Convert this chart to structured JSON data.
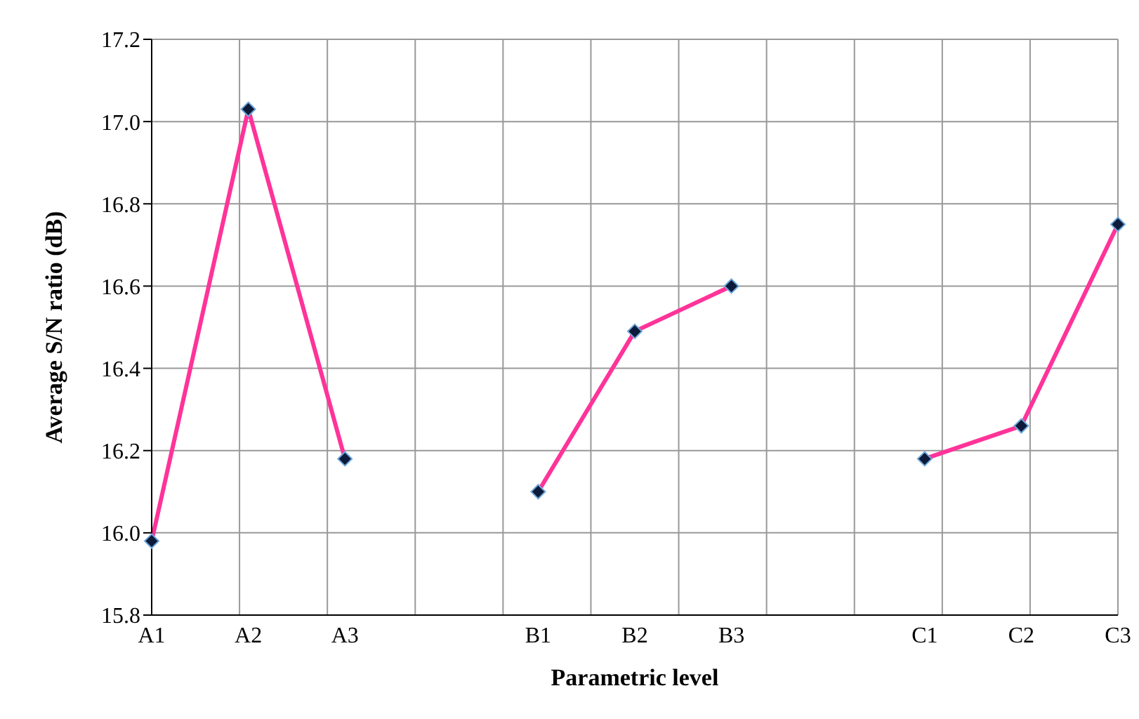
{
  "chart_data": {
    "type": "line",
    "xlabel": "Parametric level",
    "ylabel": "Average S/N ratio (dB)",
    "categories": [
      "A1",
      "A2",
      "A3",
      null,
      "B1",
      "B2",
      "B3",
      null,
      "C1",
      "C2",
      "C3"
    ],
    "series": [
      {
        "color": "#ff3399",
        "values": [
          15.98,
          17.03,
          16.18,
          null,
          16.1,
          16.49,
          16.6,
          null,
          16.18,
          16.26,
          16.75
        ]
      }
    ],
    "ylim": [
      15.8,
      17.2
    ],
    "yticks": [
      {
        "value": 15.8,
        "label": "15.8"
      },
      {
        "value": 16,
        "label": "16.0"
      },
      {
        "value": 16.2,
        "label": "16.2"
      },
      {
        "value": 16.4,
        "label": "16.4"
      },
      {
        "value": 16.6,
        "label": "16.6"
      },
      {
        "value": 16.8,
        "label": "16.8"
      },
      {
        "value": 17,
        "label": "17.0"
      },
      {
        "value": 17.2,
        "label": "17.2"
      }
    ],
    "grid": true,
    "marker": "diamond",
    "line_style": "solid",
    "legend": false
  }
}
